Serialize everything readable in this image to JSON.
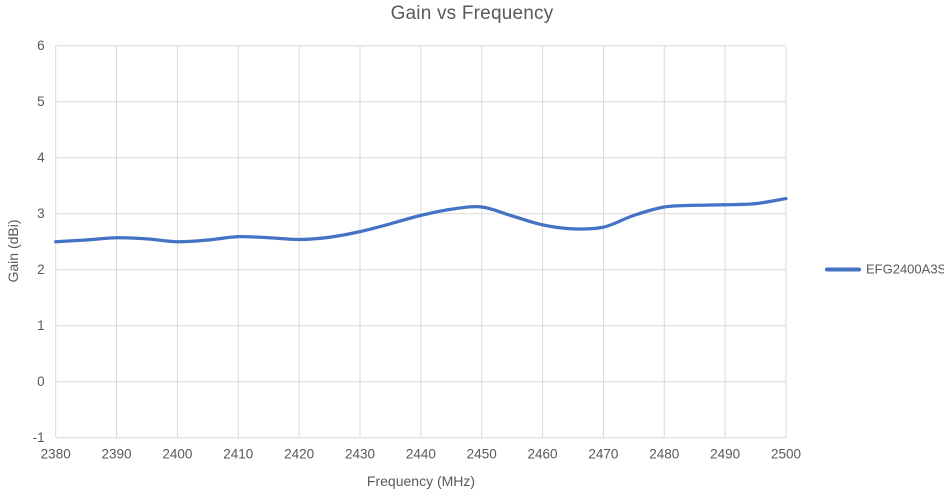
{
  "chart_data": {
    "type": "line",
    "title": "Gain vs Frequency",
    "xlabel": "Frequency (MHz)",
    "ylabel": "Gain (dBi)",
    "xlim": [
      2380,
      2500
    ],
    "ylim": [
      -1,
      6
    ],
    "x_ticks": [
      2380,
      2390,
      2400,
      2410,
      2420,
      2430,
      2440,
      2450,
      2460,
      2470,
      2480,
      2490,
      2500
    ],
    "y_ticks": [
      -1,
      0,
      1,
      2,
      3,
      4,
      5,
      6
    ],
    "grid": true,
    "smooth_line": true,
    "legend_position": "right",
    "colors": {
      "line": "#4472C4",
      "gridline": "#D9D9D9",
      "text": "#595959",
      "background": "#FFFFFF"
    },
    "x": [
      2380,
      2385,
      2390,
      2395,
      2400,
      2405,
      2410,
      2415,
      2420,
      2425,
      2430,
      2435,
      2440,
      2445,
      2450,
      2455,
      2460,
      2465,
      2470,
      2475,
      2480,
      2485,
      2490,
      2495,
      2500
    ],
    "series": [
      {
        "name": "EFG2400A3S",
        "values": [
          2.5,
          2.53,
          2.57,
          2.55,
          2.5,
          2.53,
          2.59,
          2.57,
          2.54,
          2.58,
          2.68,
          2.82,
          2.97,
          3.08,
          3.12,
          2.96,
          2.8,
          2.73,
          2.76,
          2.97,
          3.12,
          3.15,
          3.16,
          3.18,
          3.27
        ]
      }
    ]
  }
}
